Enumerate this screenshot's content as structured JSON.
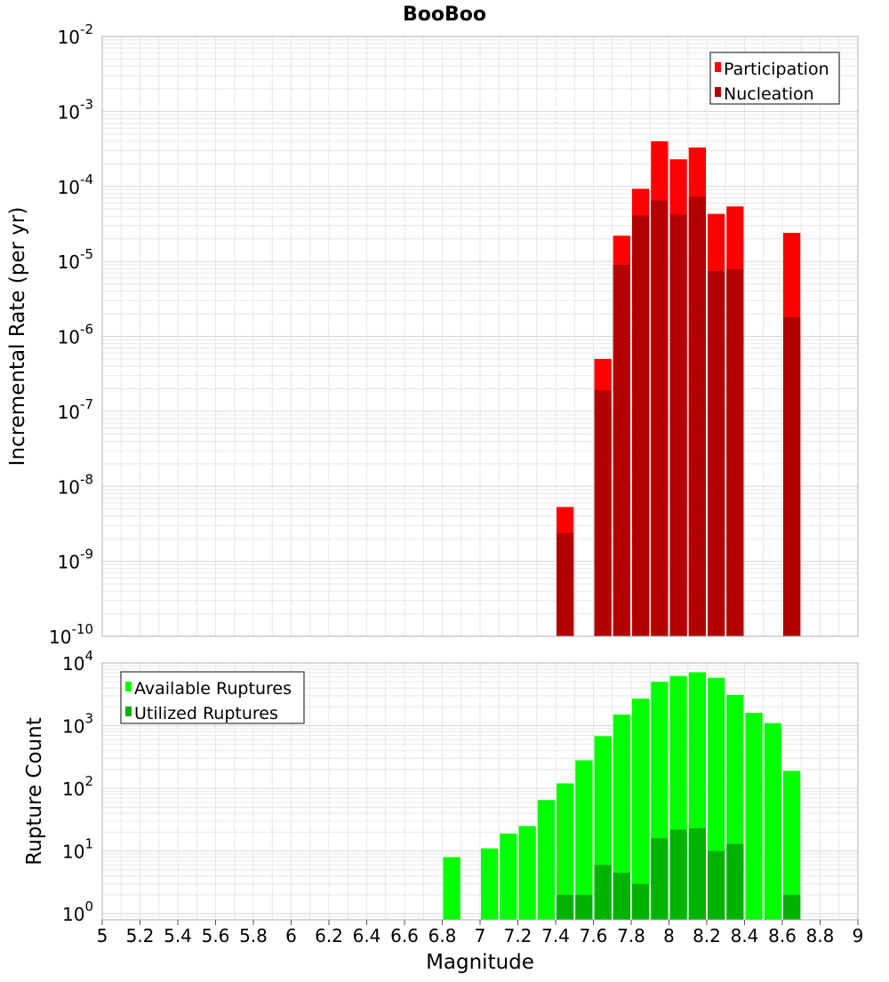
{
  "title": "BooBoo",
  "colors": {
    "participation": "#ff0000",
    "nucleation": "#b20000",
    "available": "#00ff00",
    "utilized": "#00b200",
    "grid": "#e8e8e8",
    "frame": "#b0b0b0"
  },
  "chart_data": [
    {
      "type": "bar",
      "panel": "top",
      "ylabel": "Incremental Rate (per yr)",
      "yscale": "log",
      "ylim": [
        1e-10,
        0.01
      ],
      "y_tick_exponents": [
        -10,
        -9,
        -8,
        -7,
        -6,
        -5,
        -4,
        -3,
        -2
      ],
      "legend": {
        "placement": "top-right",
        "entries": [
          "Participation",
          "Nucleation"
        ]
      },
      "x": [
        7.45,
        7.65,
        7.75,
        7.85,
        7.95,
        8.05,
        8.15,
        8.25,
        8.35,
        8.65
      ],
      "series": [
        {
          "name": "Participation",
          "color": "#ff0000",
          "values": [
            5.3e-09,
            5e-07,
            2.2e-05,
            9.3e-05,
            0.0004,
            0.00023,
            0.00033,
            4.3e-05,
            5.4e-05,
            2.4e-05
          ]
        },
        {
          "name": "Nucleation",
          "color": "#b20000",
          "values": [
            2.4e-09,
            1.9e-07,
            9e-06,
            4.1e-05,
            6.5e-05,
            4.2e-05,
            7.3e-05,
            7.4e-06,
            7.9e-06,
            1.8e-06
          ]
        }
      ],
      "grid": true
    },
    {
      "type": "bar",
      "panel": "bottom",
      "xlabel": "Magnitude",
      "ylabel": "Rupture Count",
      "yscale": "log",
      "ylim": [
        0.8,
        10000
      ],
      "y_tick_exponents": [
        0,
        1,
        2,
        3,
        4
      ],
      "xlim": [
        5,
        9
      ],
      "x_ticks": [
        "5",
        "5.2",
        "5.4",
        "5.6",
        "5.8",
        "6",
        "6.2",
        "6.4",
        "6.6",
        "6.8",
        "7",
        "7.2",
        "7.4",
        "7.6",
        "7.8",
        "8",
        "8.2",
        "8.4",
        "8.6",
        "8.8",
        "9"
      ],
      "legend": {
        "placement": "top-left",
        "entries": [
          "Available Ruptures",
          "Utilized Ruptures"
        ]
      },
      "x": [
        6.85,
        7.05,
        7.15,
        7.25,
        7.35,
        7.45,
        7.55,
        7.65,
        7.75,
        7.85,
        7.95,
        8.05,
        8.15,
        8.25,
        8.35,
        8.45,
        8.55,
        8.65
      ],
      "series": [
        {
          "name": "Available Ruptures",
          "color": "#00ff00",
          "values": [
            8,
            11,
            19,
            25,
            65,
            120,
            280,
            680,
            1500,
            2700,
            5000,
            6200,
            7100,
            5800,
            3100,
            1600,
            1100,
            190
          ]
        },
        {
          "name": "Utilized Ruptures",
          "color": "#00b200",
          "values": [
            null,
            null,
            null,
            null,
            null,
            2,
            2,
            6,
            4.5,
            3,
            16,
            22,
            23,
            10,
            13,
            null,
            null,
            2
          ]
        }
      ],
      "grid": true
    }
  ]
}
